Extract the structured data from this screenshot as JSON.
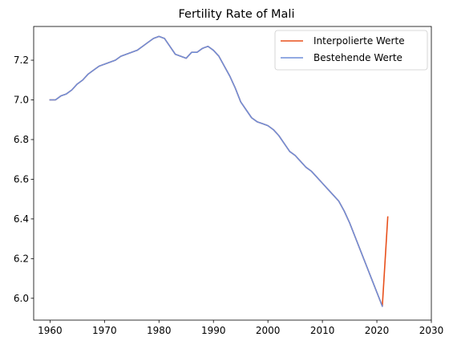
{
  "chart_data": {
    "type": "line",
    "title": "Fertility Rate of Mali",
    "xlabel": "",
    "ylabel": "",
    "xlim": [
      1957,
      2030
    ],
    "ylim": [
      5.89,
      7.37
    ],
    "xticks": [
      1960,
      1970,
      1980,
      1990,
      2000,
      2010,
      2020,
      2030
    ],
    "yticks": [
      6.0,
      6.2,
      6.4,
      6.6,
      6.8,
      7.0,
      7.2
    ],
    "ytick_labels": [
      "6.0",
      "6.2",
      "6.4",
      "6.6",
      "6.8",
      "7.0",
      "7.2"
    ],
    "grid": false,
    "legend_position": "top-right",
    "series": [
      {
        "name": "Interpolierte Werte",
        "color": "#e8501c",
        "x": [
          1960,
          1961,
          1962,
          1963,
          1964,
          1965,
          1966,
          1967,
          1968,
          1969,
          1970,
          1971,
          1972,
          1973,
          1974,
          1975,
          1976,
          1977,
          1978,
          1979,
          1980,
          1981,
          1982,
          1983,
          1984,
          1985,
          1986,
          1987,
          1988,
          1989,
          1990,
          1991,
          1992,
          1993,
          1994,
          1995,
          1996,
          1997,
          1998,
          1999,
          2000,
          2001,
          2002,
          2003,
          2004,
          2005,
          2006,
          2007,
          2008,
          2009,
          2010,
          2011,
          2012,
          2013,
          2014,
          2015,
          2016,
          2017,
          2018,
          2019,
          2020,
          2021,
          2022
        ],
        "values": [
          7.0,
          7.0,
          7.02,
          7.03,
          7.05,
          7.08,
          7.1,
          7.13,
          7.15,
          7.17,
          7.18,
          7.19,
          7.2,
          7.22,
          7.23,
          7.24,
          7.25,
          7.27,
          7.29,
          7.31,
          7.32,
          7.31,
          7.27,
          7.23,
          7.22,
          7.21,
          7.24,
          7.24,
          7.26,
          7.27,
          7.25,
          7.22,
          7.17,
          7.12,
          7.06,
          6.99,
          6.95,
          6.91,
          6.89,
          6.88,
          6.87,
          6.85,
          6.82,
          6.78,
          6.74,
          6.72,
          6.69,
          6.66,
          6.64,
          6.61,
          6.58,
          6.55,
          6.52,
          6.49,
          6.44,
          6.38,
          6.31,
          6.24,
          6.17,
          6.1,
          6.03,
          5.96,
          6.41
        ]
      },
      {
        "name": "Bestehende Werte",
        "color": "#6f8ed8",
        "x": [
          1960,
          1961,
          1962,
          1963,
          1964,
          1965,
          1966,
          1967,
          1968,
          1969,
          1970,
          1971,
          1972,
          1973,
          1974,
          1975,
          1976,
          1977,
          1978,
          1979,
          1980,
          1981,
          1982,
          1983,
          1984,
          1985,
          1986,
          1987,
          1988,
          1989,
          1990,
          1991,
          1992,
          1993,
          1994,
          1995,
          1996,
          1997,
          1998,
          1999,
          2000,
          2001,
          2002,
          2003,
          2004,
          2005,
          2006,
          2007,
          2008,
          2009,
          2010,
          2011,
          2012,
          2013,
          2014,
          2015,
          2016,
          2017,
          2018,
          2019,
          2020,
          2021
        ],
        "values": [
          7.0,
          7.0,
          7.02,
          7.03,
          7.05,
          7.08,
          7.1,
          7.13,
          7.15,
          7.17,
          7.18,
          7.19,
          7.2,
          7.22,
          7.23,
          7.24,
          7.25,
          7.27,
          7.29,
          7.31,
          7.32,
          7.31,
          7.27,
          7.23,
          7.22,
          7.21,
          7.24,
          7.24,
          7.26,
          7.27,
          7.25,
          7.22,
          7.17,
          7.12,
          7.06,
          6.99,
          6.95,
          6.91,
          6.89,
          6.88,
          6.87,
          6.85,
          6.82,
          6.78,
          6.74,
          6.72,
          6.69,
          6.66,
          6.64,
          6.61,
          6.58,
          6.55,
          6.52,
          6.49,
          6.44,
          6.38,
          6.31,
          6.24,
          6.17,
          6.1,
          6.03,
          5.96
        ]
      }
    ]
  }
}
